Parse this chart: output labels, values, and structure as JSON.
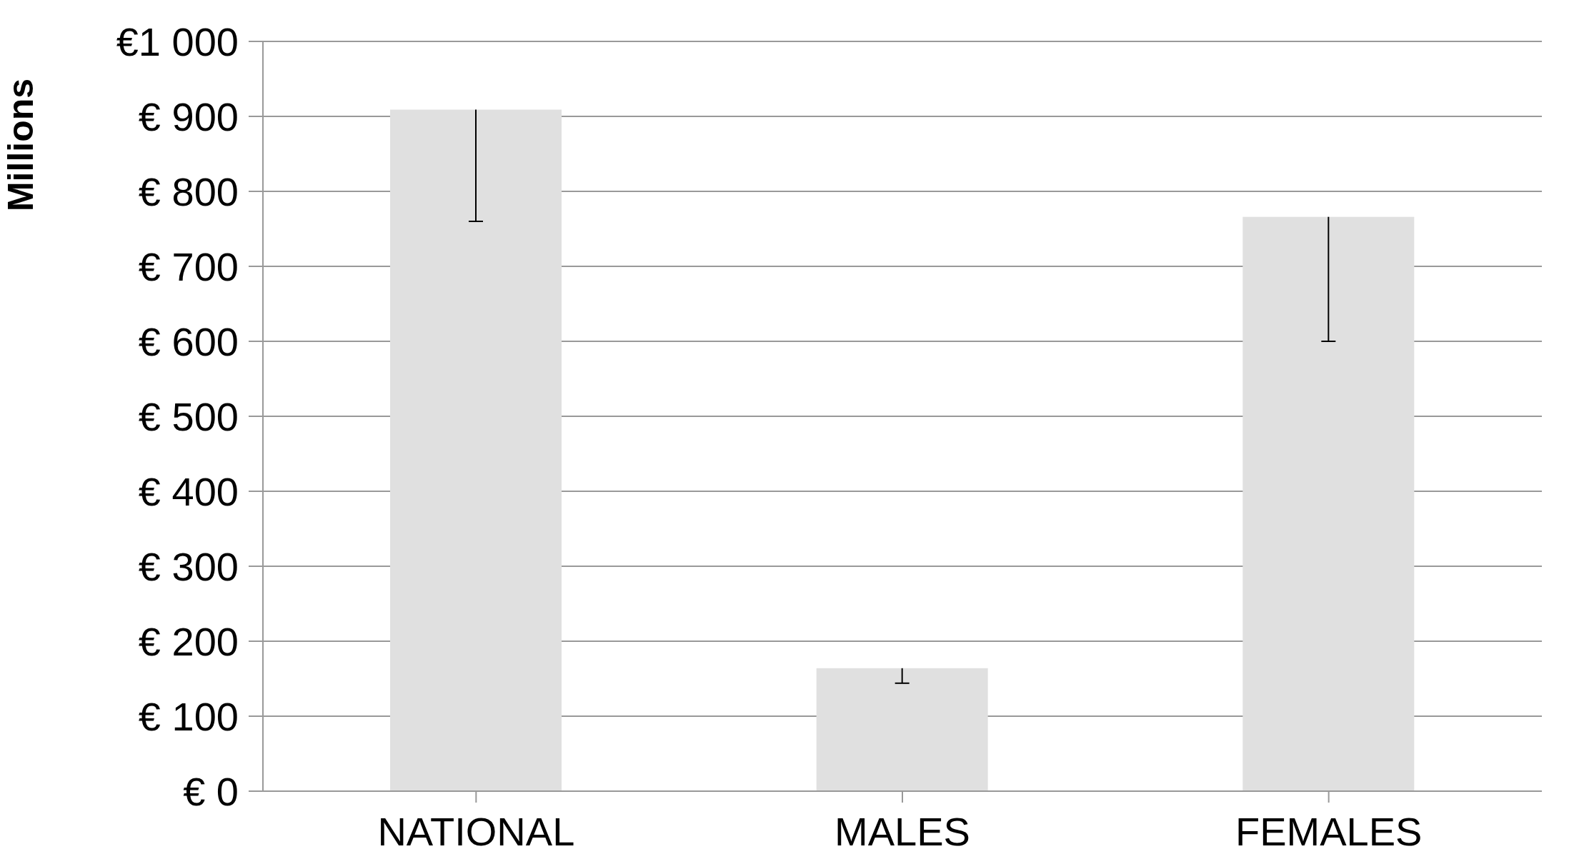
{
  "chart_data": {
    "type": "bar",
    "ylabel": "Millions",
    "categories": [
      "NATIONAL",
      "MALES",
      "FEMALES"
    ],
    "values": [
      909,
      164,
      766
    ],
    "color": "#e0e0e0",
    "errors": [
      [
        760,
        909
      ],
      [
        144,
        164
      ],
      [
        600,
        766
      ]
    ],
    "ylim": [
      0,
      1000
    ],
    "yticks": [
      {
        "value": 0,
        "label": "€ 0"
      },
      {
        "value": 100,
        "label": "€ 100"
      },
      {
        "value": 200,
        "label": "€ 200"
      },
      {
        "value": 300,
        "label": "€ 300"
      },
      {
        "value": 400,
        "label": "€ 400"
      },
      {
        "value": 500,
        "label": "€ 500"
      },
      {
        "value": 600,
        "label": "€ 600"
      },
      {
        "value": 700,
        "label": "€ 700"
      },
      {
        "value": 800,
        "label": "€ 800"
      },
      {
        "value": 900,
        "label": "€ 900"
      },
      {
        "value": 1000,
        "label": "€1 000"
      }
    ],
    "grid": "y"
  }
}
